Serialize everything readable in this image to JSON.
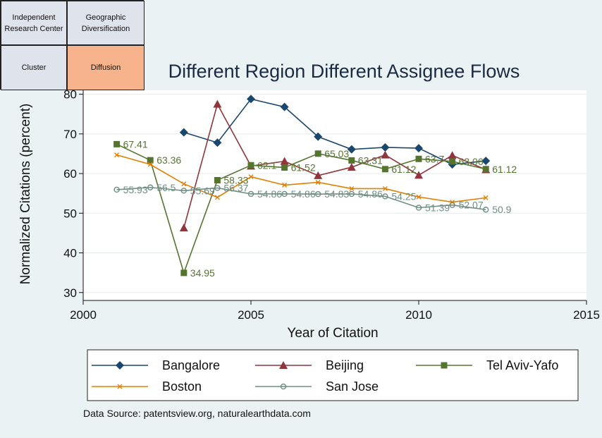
{
  "nav": {
    "items": [
      {
        "label_lines": [
          "Independent",
          "Research Center"
        ],
        "active": false
      },
      {
        "label_lines": [
          "Geographic",
          "Diversification"
        ],
        "active": false
      },
      {
        "label_lines": [
          "Cluster"
        ],
        "active": false
      },
      {
        "label_lines": [
          "Diffusion"
        ],
        "active": true
      }
    ]
  },
  "chart_data": {
    "type": "line",
    "title": "Different Region Different Assignee Flows",
    "xlabel": "Year of Citation",
    "ylabel": "Normalized Citations (percent)",
    "xlim": [
      2000,
      2015
    ],
    "ylim": [
      28,
      81
    ],
    "xticks": [
      2000,
      2005,
      2010,
      2015
    ],
    "yticks": [
      30,
      40,
      50,
      60,
      70,
      80
    ],
    "grid": true,
    "legend_position": "bottom",
    "source": "Data Source: patentsview.org, naturalearthdata.com",
    "series": [
      {
        "name": "Bangalore",
        "color": "#1a476f",
        "marker": "diamond",
        "x": [
          2003,
          2004,
          2005,
          2006,
          2007,
          2008,
          2009,
          2010,
          2011,
          2012
        ],
        "y": [
          70.4,
          67.8,
          78.8,
          76.8,
          69.3,
          66.1,
          66.6,
          66.4,
          62.3,
          63.2
        ],
        "labels": []
      },
      {
        "name": "Beijing",
        "color": "#90353b",
        "marker": "triangle",
        "x": [
          2003,
          2004,
          2005,
          2006,
          2007,
          2008,
          2009,
          2010,
          2011,
          2012
        ],
        "y": [
          46.3,
          77.5,
          61.9,
          63.1,
          59.5,
          61.6,
          64.7,
          59.6,
          64.6,
          61.0
        ],
        "labels": []
      },
      {
        "name": "Tel Aviv-Yafo",
        "color": "#55752f",
        "marker": "square",
        "x": [
          2001,
          2002,
          2003,
          2004,
          2005,
          2006,
          2007,
          2008,
          2009,
          2010,
          2011,
          2012
        ],
        "y": [
          67.41,
          63.36,
          34.95,
          58.33,
          62.1,
          61.52,
          65.03,
          63.31,
          61.12,
          63.7,
          63.06,
          61.12
        ],
        "labels": [
          "67.41",
          "63.36",
          "34.95",
          "58.33",
          "62.1",
          "61.52",
          "65.03",
          "63.31",
          "61.12",
          "63.7",
          "63.06",
          "61.12"
        ]
      },
      {
        "name": "Boston",
        "color": "#e37e00",
        "marker": "x",
        "x": [
          2001,
          2002,
          2003,
          2004,
          2005,
          2006,
          2007,
          2008,
          2009,
          2010,
          2011,
          2012
        ],
        "y": [
          64.7,
          62.3,
          57.4,
          54.0,
          59.2,
          57.1,
          57.8,
          56.2,
          56.2,
          54.1,
          52.8,
          53.9
        ],
        "labels": []
      },
      {
        "name": "San Jose",
        "color": "#6e8e84",
        "marker": "circle",
        "x": [
          2001,
          2002,
          2003,
          2004,
          2005,
          2006,
          2007,
          2008,
          2009,
          2010,
          2011,
          2012
        ],
        "y": [
          55.93,
          56.5,
          55.69,
          56.37,
          54.86,
          54.86,
          54.83,
          54.86,
          54.25,
          51.39,
          52.07,
          50.9
        ],
        "labels": [
          "55.93",
          "56.5",
          "55.69",
          "56.37",
          "54.86",
          "54.86",
          "54.83",
          "54.86",
          "54.25",
          "51.39",
          "52.07",
          "50.9"
        ]
      }
    ]
  }
}
